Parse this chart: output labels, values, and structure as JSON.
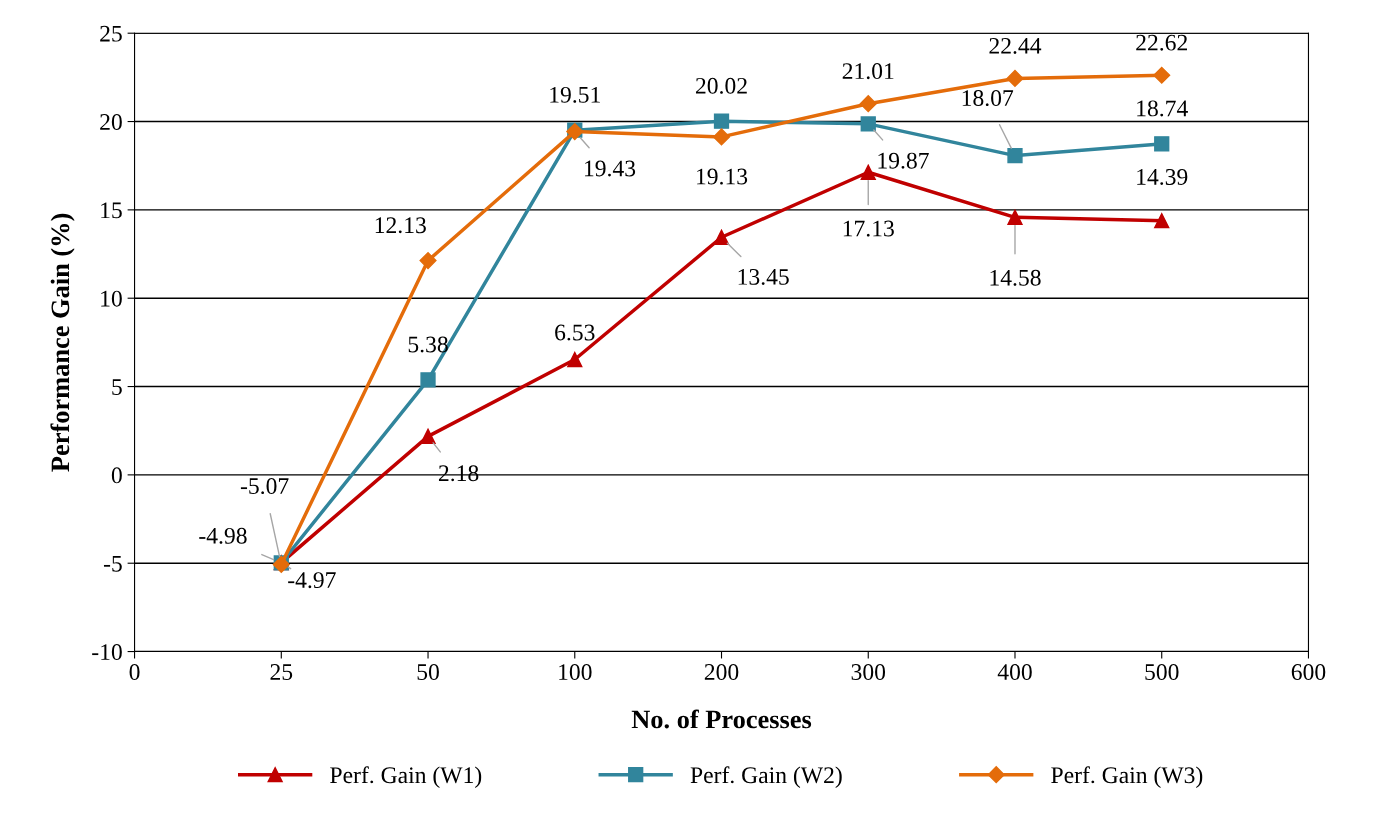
{
  "chart_data": {
    "type": "line",
    "xlabel": "No. of Processes",
    "ylabel": "Performance Gain (%)",
    "categories": [
      "0",
      "25",
      "50",
      "100",
      "200",
      "300",
      "400",
      "500",
      "600"
    ],
    "series": [
      {
        "name": "Perf. Gain (W1)",
        "color": "#c00000",
        "marker": "triangle",
        "values": [
          null,
          -4.97,
          2.18,
          6.53,
          13.45,
          17.13,
          14.58,
          14.39,
          null
        ]
      },
      {
        "name": "Perf. Gain (W2)",
        "color": "#31859c",
        "marker": "square",
        "values": [
          null,
          -4.98,
          5.38,
          19.51,
          20.02,
          19.87,
          18.07,
          18.74,
          null
        ]
      },
      {
        "name": "Perf. Gain (W3)",
        "color": "#e46c0a",
        "marker": "diamond",
        "values": [
          null,
          -5.07,
          12.13,
          19.43,
          19.13,
          21.01,
          22.44,
          22.62,
          null
        ]
      }
    ],
    "ylim": [
      -10,
      25
    ],
    "yticks": [
      -10,
      -5,
      0,
      5,
      10,
      15,
      20,
      25
    ],
    "grid": "y",
    "legend": "bottom",
    "data_labels": true,
    "line_style": "solid"
  }
}
